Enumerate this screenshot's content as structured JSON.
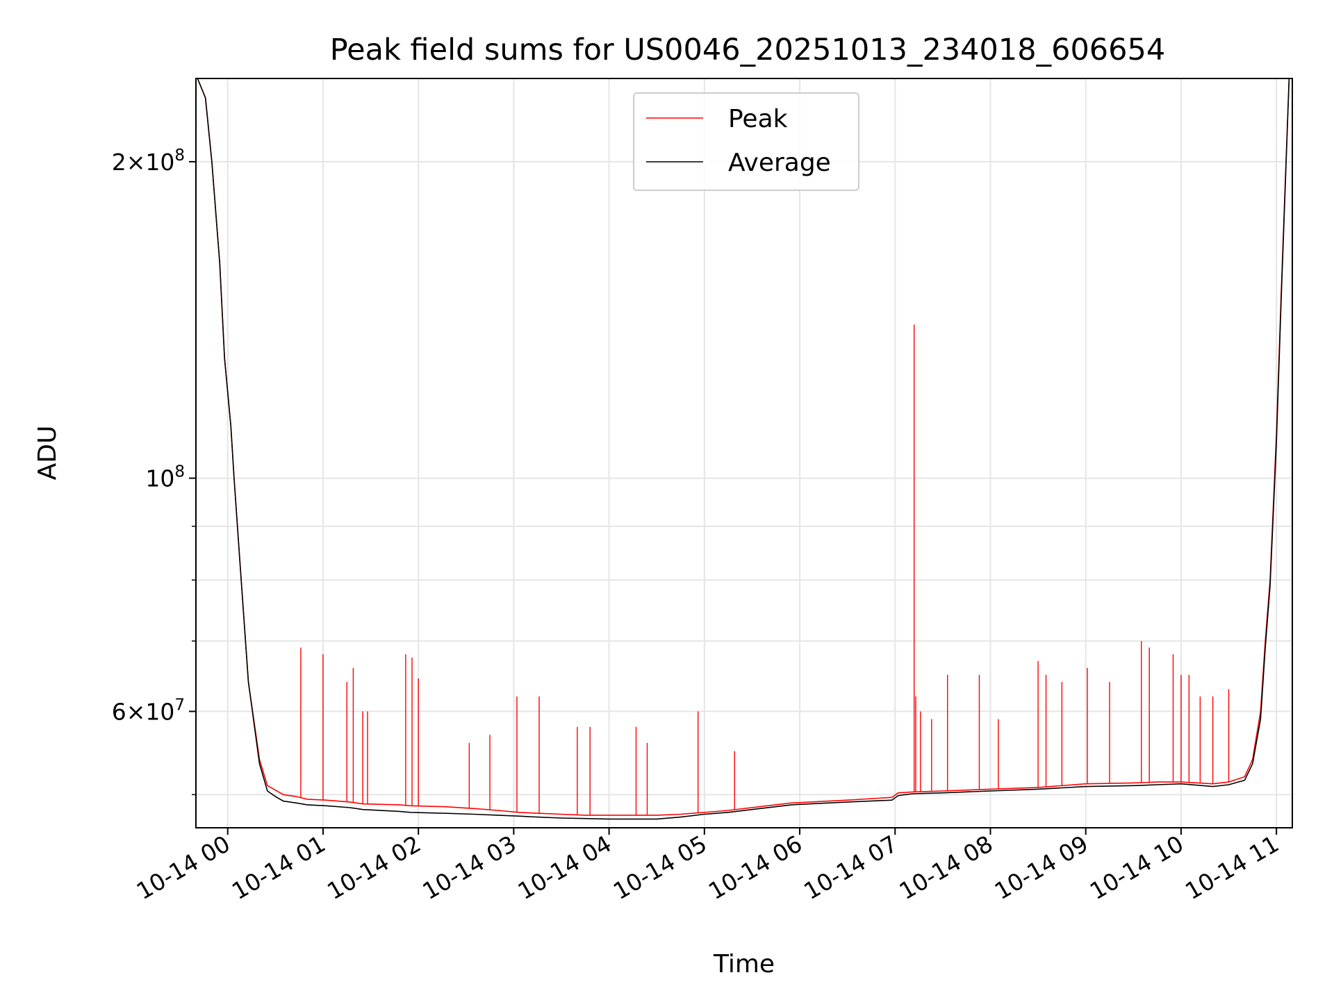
{
  "chart_data": {
    "type": "line",
    "title": "Peak field sums for US0046_20251013_234018_606654",
    "xlabel": "Time",
    "ylabel": "ADU",
    "yscale": "log",
    "xlim": [
      "2025-10-13 23:40",
      "2025-10-14 11:10"
    ],
    "ylim": [
      46500000,
      240000000
    ],
    "grid": true,
    "legend_position": "upper center",
    "x_ticks": [
      "10-14 00",
      "10-14 01",
      "10-14 02",
      "10-14 03",
      "10-14 04",
      "10-14 05",
      "10-14 06",
      "10-14 07",
      "10-14 08",
      "10-14 09",
      "10-14 10",
      "10-14 11"
    ],
    "y_ticks": [
      {
        "value": 200000000,
        "base": "2",
        "mult": "×",
        "pow10": "10",
        "exp": "8"
      },
      {
        "value": 100000000,
        "base": "",
        "mult": "",
        "pow10": "10",
        "exp": "8"
      },
      {
        "value": 60000000,
        "base": "6",
        "mult": "×",
        "pow10": "10",
        "exp": "7"
      }
    ],
    "y_minor_ticks": [
      50000000,
      70000000,
      80000000,
      90000000
    ],
    "series": [
      {
        "name": "Peak",
        "color": "#ff0000",
        "x": [
          "2025-10-13 23:41",
          "2025-10-13 23:46",
          "2025-10-13 23:50",
          "2025-10-13 23:55",
          "2025-10-13 23:58",
          "2025-10-14 00:02",
          "2025-10-14 00:04",
          "2025-10-14 00:08",
          "2025-10-14 00:13",
          "2025-10-14 00:20",
          "2025-10-14 00:25",
          "2025-10-14 00:30",
          "2025-10-14 00:35",
          "2025-10-14 00:43",
          "2025-10-14 00:50",
          "2025-10-14 01:02",
          "2025-10-14 01:17",
          "2025-10-14 01:25",
          "2025-10-14 01:48",
          "2025-10-14 01:55",
          "2025-10-14 02:16",
          "2025-10-14 02:35",
          "2025-10-14 02:50",
          "2025-10-14 03:03",
          "2025-10-14 03:15",
          "2025-10-14 03:30",
          "2025-10-14 03:45",
          "2025-10-14 04:00",
          "2025-10-14 04:15",
          "2025-10-14 04:30",
          "2025-10-14 04:45",
          "2025-10-14 05:00",
          "2025-10-14 05:15",
          "2025-10-14 05:35",
          "2025-10-14 05:55",
          "2025-10-14 06:30",
          "2025-10-14 06:58",
          "2025-10-14 07:02",
          "2025-10-14 07:11",
          "2025-10-14 07:30",
          "2025-10-14 08:00",
          "2025-10-14 08:30",
          "2025-10-14 09:00",
          "2025-10-14 09:30",
          "2025-10-14 09:45",
          "2025-10-14 10:00",
          "2025-10-14 10:20",
          "2025-10-14 10:30",
          "2025-10-14 10:40",
          "2025-10-14 10:45",
          "2025-10-14 10:50",
          "2025-10-14 10:53",
          "2025-10-14 10:56",
          "2025-10-14 11:00",
          "2025-10-14 11:03",
          "2025-10-14 11:06",
          "2025-10-14 11:08"
        ],
        "y": [
          240000000,
          230000000,
          200000000,
          160000000,
          130000000,
          112000000,
          100000000,
          82000000,
          64000000,
          54000000,
          51000000,
          50500000,
          50000000,
          49800000,
          49500000,
          49400000,
          49200000,
          49000000,
          48900000,
          48800000,
          48700000,
          48500000,
          48300000,
          48100000,
          48000000,
          47900000,
          47800000,
          47800000,
          47800000,
          47800000,
          47900000,
          48100000,
          48300000,
          48700000,
          49100000,
          49400000,
          49700000,
          50200000,
          50300000,
          50400000,
          50600000,
          50800000,
          51200000,
          51300000,
          51400000,
          51400000,
          51200000,
          51400000,
          52000000,
          54000000,
          60000000,
          70000000,
          80000000,
          110000000,
          150000000,
          200000000,
          240000000
        ]
      },
      {
        "name": "Average",
        "color": "#000000",
        "x": [
          "2025-10-13 23:41",
          "2025-10-13 23:46",
          "2025-10-13 23:50",
          "2025-10-13 23:55",
          "2025-10-13 23:58",
          "2025-10-14 00:02",
          "2025-10-14 00:04",
          "2025-10-14 00:08",
          "2025-10-14 00:13",
          "2025-10-14 00:20",
          "2025-10-14 00:25",
          "2025-10-14 00:30",
          "2025-10-14 00:35",
          "2025-10-14 00:43",
          "2025-10-14 00:50",
          "2025-10-14 01:02",
          "2025-10-14 01:17",
          "2025-10-14 01:25",
          "2025-10-14 01:48",
          "2025-10-14 01:55",
          "2025-10-14 02:16",
          "2025-10-14 02:35",
          "2025-10-14 02:50",
          "2025-10-14 03:03",
          "2025-10-14 03:15",
          "2025-10-14 03:30",
          "2025-10-14 03:45",
          "2025-10-14 04:00",
          "2025-10-14 04:15",
          "2025-10-14 04:30",
          "2025-10-14 04:45",
          "2025-10-14 05:00",
          "2025-10-14 05:15",
          "2025-10-14 05:35",
          "2025-10-14 05:55",
          "2025-10-14 06:30",
          "2025-10-14 06:58",
          "2025-10-14 07:02",
          "2025-10-14 07:11",
          "2025-10-14 07:30",
          "2025-10-14 08:00",
          "2025-10-14 08:30",
          "2025-10-14 09:00",
          "2025-10-14 09:30",
          "2025-10-14 09:45",
          "2025-10-14 10:00",
          "2025-10-14 10:20",
          "2025-10-14 10:30",
          "2025-10-14 10:40",
          "2025-10-14 10:45",
          "2025-10-14 10:50",
          "2025-10-14 10:53",
          "2025-10-14 10:56",
          "2025-10-14 11:00",
          "2025-10-14 11:03",
          "2025-10-14 11:06",
          "2025-10-14 11:08"
        ],
        "y": [
          240000000,
          230000000,
          200000000,
          160000000,
          130000000,
          112000000,
          100000000,
          82000000,
          64000000,
          53500000,
          50400000,
          49800000,
          49300000,
          49100000,
          48900000,
          48800000,
          48600000,
          48400000,
          48200000,
          48100000,
          48000000,
          47900000,
          47800000,
          47700000,
          47600000,
          47500000,
          47450000,
          47400000,
          47400000,
          47400000,
          47600000,
          47900000,
          48100000,
          48500000,
          48900000,
          49200000,
          49400000,
          49900000,
          50100000,
          50200000,
          50400000,
          50600000,
          50900000,
          51000000,
          51100000,
          51200000,
          50900000,
          51100000,
          51600000,
          53500000,
          59000000,
          69000000,
          79000000,
          108000000,
          148000000,
          198000000,
          240000000
        ]
      }
    ],
    "spikes": {
      "series": "Peak",
      "x": [
        "2025-10-14 00:46",
        "2025-10-14 01:00",
        "2025-10-14 01:15",
        "2025-10-14 01:19",
        "2025-10-14 01:25",
        "2025-10-14 01:28",
        "2025-10-14 01:52",
        "2025-10-14 01:56",
        "2025-10-14 02:00",
        "2025-10-14 02:32",
        "2025-10-14 02:45",
        "2025-10-14 03:02",
        "2025-10-14 03:16",
        "2025-10-14 03:40",
        "2025-10-14 03:48",
        "2025-10-14 04:17",
        "2025-10-14 04:24",
        "2025-10-14 04:56",
        "2025-10-14 05:19",
        "2025-10-14 07:12",
        "2025-10-14 07:13",
        "2025-10-14 07:16",
        "2025-10-14 07:23",
        "2025-10-14 07:33",
        "2025-10-14 07:53",
        "2025-10-14 08:05",
        "2025-10-14 08:30",
        "2025-10-14 08:35",
        "2025-10-14 08:45",
        "2025-10-14 09:01",
        "2025-10-14 09:15",
        "2025-10-14 09:35",
        "2025-10-14 09:40",
        "2025-10-14 09:55",
        "2025-10-14 10:00",
        "2025-10-14 10:05",
        "2025-10-14 10:12",
        "2025-10-14 10:20",
        "2025-10-14 10:30"
      ],
      "y": [
        69000000,
        68000000,
        64000000,
        66000000,
        60000000,
        60000000,
        68000000,
        67500000,
        64500000,
        56000000,
        57000000,
        62000000,
        62000000,
        58000000,
        58000000,
        58000000,
        56000000,
        60000000,
        55000000,
        140000000,
        62000000,
        60000000,
        59000000,
        65000000,
        65000000,
        59000000,
        67000000,
        65000000,
        64000000,
        66000000,
        64000000,
        70000000,
        69000000,
        68000000,
        65000000,
        65000000,
        62000000,
        62000000,
        63000000
      ]
    }
  }
}
